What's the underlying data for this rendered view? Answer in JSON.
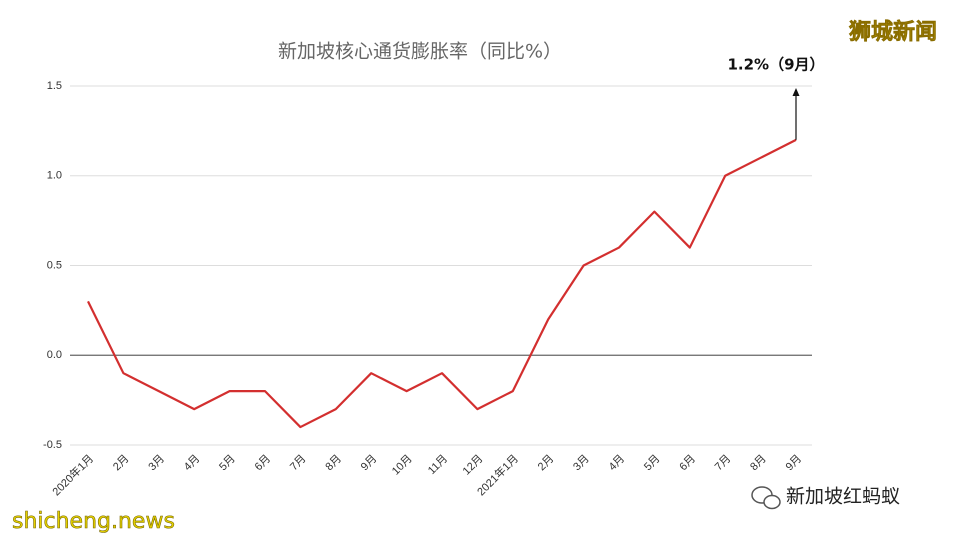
{
  "chart_data": {
    "type": "line",
    "title": "新加坡核心通货膨胀率（同比%）",
    "categories": [
      "2020年1月",
      "2月",
      "3月",
      "4月",
      "5月",
      "6月",
      "7月",
      "8月",
      "9月",
      "10月",
      "11月",
      "12月",
      "2021年1月",
      "2月",
      "3月",
      "4月",
      "5月",
      "6月",
      "7月",
      "8月",
      "9月"
    ],
    "values": [
      0.3,
      -0.1,
      -0.2,
      -0.3,
      -0.2,
      -0.2,
      -0.4,
      -0.3,
      -0.1,
      -0.2,
      -0.1,
      -0.3,
      -0.2,
      0.2,
      0.5,
      0.6,
      0.8,
      0.6,
      1.0,
      1.1,
      1.2
    ],
    "color": "#d32f2f",
    "ylim": [
      -0.5,
      1.5
    ],
    "yticks": [
      -0.5,
      {
        "value": 0,
        "label": "0.0"
      },
      0.5,
      {
        "value": 1,
        "label": "1.0"
      },
      1.5
    ],
    "grid": true,
    "annotation": "1.2%（9月）"
  },
  "watermarks": {
    "top_right": "狮城新闻",
    "bottom_left": "shicheng.news",
    "bottom_right": "新加坡红蚂蚁"
  }
}
